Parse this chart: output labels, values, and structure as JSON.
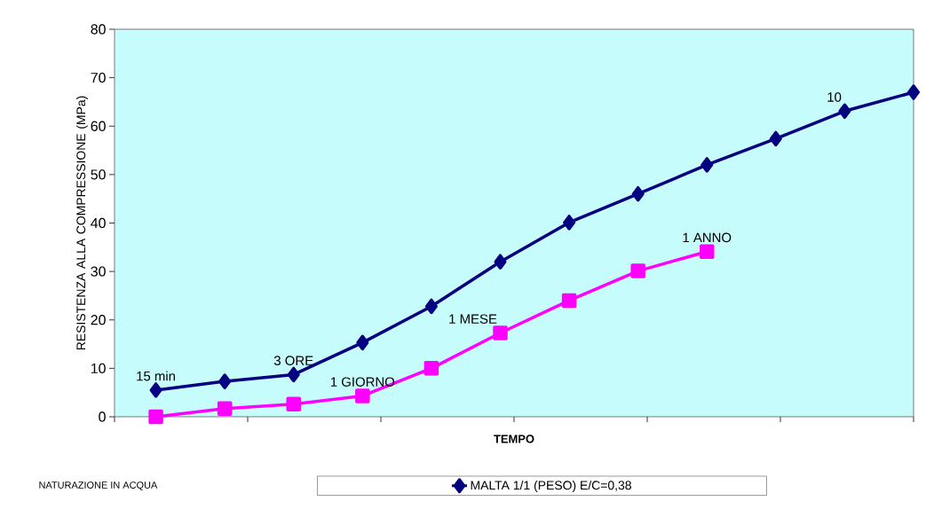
{
  "chart_data": {
    "type": "line",
    "xlabel": "TEMPO",
    "ylabel": "RESISTENZA ALLA COMPRESSIONE (MPa)",
    "categories": [
      null,
      null,
      null,
      null,
      null,
      null,
      null,
      null,
      null,
      null,
      null,
      null
    ],
    "ylim": [
      0,
      80
    ],
    "yticks": [
      0,
      10,
      20,
      30,
      40,
      50,
      60,
      70,
      80
    ],
    "legend": "bottom",
    "series": [
      {
        "name": "MALTA 1/1 (PESO)  E/C=0,38",
        "color": "#000080",
        "marker": "diamond",
        "values": [
          5.5,
          7.3,
          8.7,
          15.3,
          22.8,
          32.0,
          40.1,
          46.0,
          52.0,
          57.4,
          63.1,
          67.0
        ]
      },
      {
        "color": "#ff00ff",
        "marker": "square",
        "values": [
          0,
          1.7,
          2.6,
          4.3,
          10.0,
          17.3,
          24.0,
          30.1,
          34.1,
          null,
          null,
          null
        ]
      }
    ],
    "annotations": [
      "15 min",
      "3 ORE",
      "1 GIORNO",
      "1 MESE",
      "1 ANNO",
      "10",
      "NATURAZIONE IN ACQUA"
    ]
  }
}
